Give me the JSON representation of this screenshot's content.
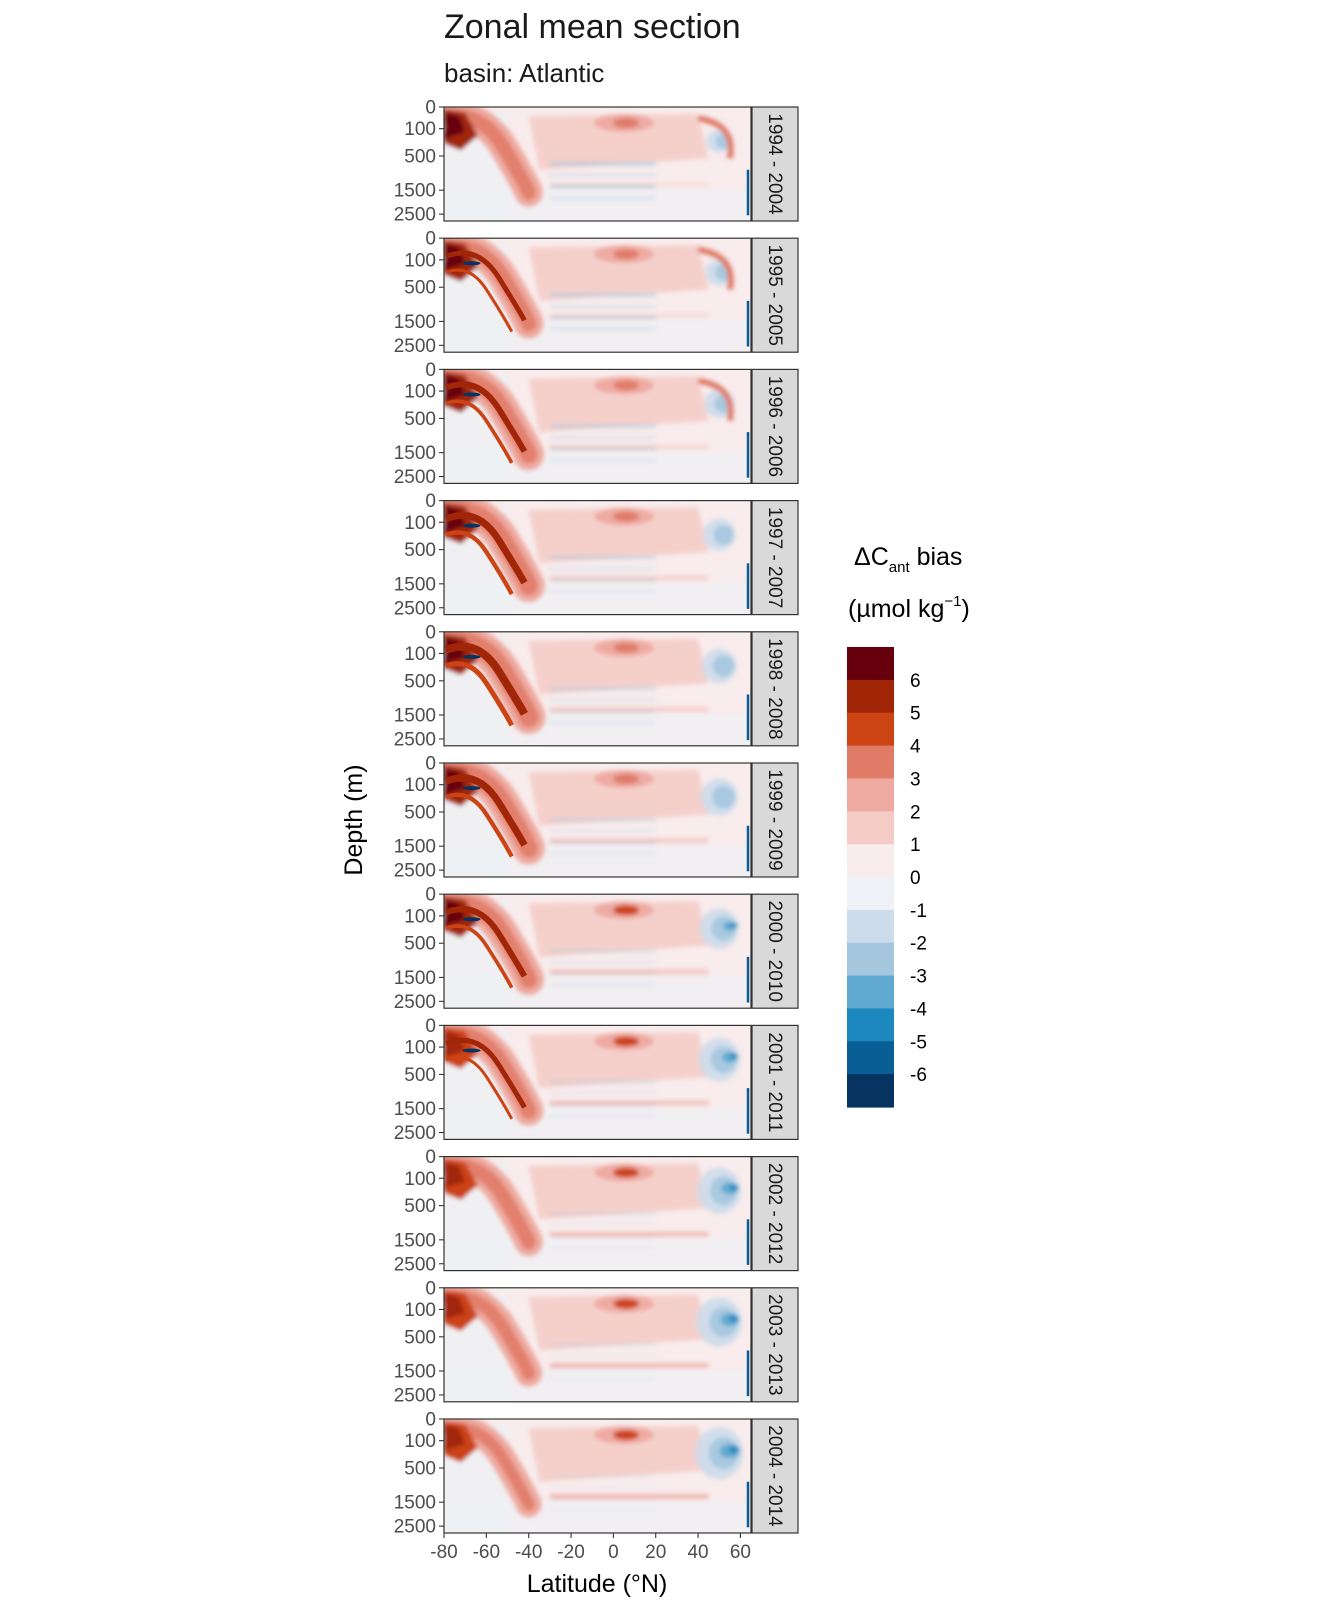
{
  "chart_data": {
    "type": "heatmap",
    "title": "Zonal mean section",
    "subtitle": "basin: Atlantic",
    "xlabel": "Latitude (°N)",
    "ylabel": "Depth (m)",
    "xlim": [
      -80,
      65
    ],
    "x_ticks": [
      "-80",
      "-60",
      "-40",
      "-20",
      "0",
      "20",
      "40",
      "60"
    ],
    "x_tick_values": [
      -80,
      -60,
      -40,
      -20,
      0,
      20,
      40,
      60
    ],
    "y_ticks": [
      "0",
      "100",
      "500",
      "1500",
      "2500"
    ],
    "y_tick_values": [
      0,
      100,
      500,
      1500,
      2500
    ],
    "y_reversed": true,
    "panels": [
      {
        "label": "1994 - 2004"
      },
      {
        "label": "1995 - 2005"
      },
      {
        "label": "1996 - 2006"
      },
      {
        "label": "1997 - 2007"
      },
      {
        "label": "1998 - 2008"
      },
      {
        "label": "1999 - 2009"
      },
      {
        "label": "2000 - 2010"
      },
      {
        "label": "2001 - 2011"
      },
      {
        "label": "2002 - 2012"
      },
      {
        "label": "2003 - 2013"
      },
      {
        "label": "2004 - 2014"
      }
    ],
    "legend": {
      "title_prefix": "ΔC",
      "title_sub": "ant",
      "title_suffix": " bias",
      "unit_prefix": "(µmol kg",
      "unit_sup": "−1",
      "unit_suffix": ")",
      "tick_labels": [
        "6",
        "5",
        "4",
        "3",
        "2",
        "1",
        "0",
        "-1",
        "-2",
        "-3",
        "-4",
        "-5",
        "-6"
      ],
      "colors": [
        "#67000d",
        "#a12608",
        "#cc4314",
        "#e07b67",
        "#eeaaa0",
        "#f4cbc5",
        "#f8ecec",
        "#eef1f5",
        "#cddceb",
        "#a4c7de",
        "#60a9d0",
        "#1d87bf",
        "#0a5e96",
        "#06335f"
      ]
    },
    "grid": false
  }
}
